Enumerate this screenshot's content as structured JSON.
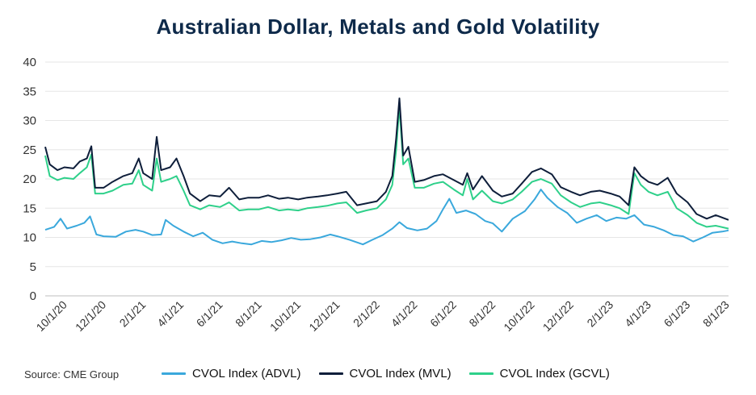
{
  "chart_data": {
    "type": "line",
    "title": "Australian Dollar, Metals and Gold Volatility",
    "source": "Source: CME Group",
    "ylim": [
      0,
      40
    ],
    "yticks": [
      "0",
      "5",
      "10",
      "15",
      "20",
      "25",
      "30",
      "35",
      "40"
    ],
    "xlim": [
      "2020-09-01",
      "2023-08-04"
    ],
    "xticks": [
      "10/1/20",
      "12/1/20",
      "2/1/21",
      "4/1/21",
      "6/1/21",
      "8/1/21",
      "10/1/21",
      "12/1/21",
      "2/1/22",
      "4/1/22",
      "6/1/22",
      "8/1/22",
      "10/1/22",
      "12/1/22",
      "2/1/23",
      "4/1/23",
      "6/1/23",
      "8/1/23"
    ],
    "grid": true,
    "legend_position": "bottom",
    "series": [
      {
        "name": "CVOL Index (ADVL)",
        "color": "#3aa8dc",
        "points": [
          [
            "2020-09-01",
            11.3
          ],
          [
            "2020-09-15",
            11.8
          ],
          [
            "2020-09-25",
            13.2
          ],
          [
            "2020-10-05",
            11.5
          ],
          [
            "2020-10-20",
            12.0
          ],
          [
            "2020-11-01",
            12.5
          ],
          [
            "2020-11-10",
            13.6
          ],
          [
            "2020-11-20",
            10.5
          ],
          [
            "2020-12-01",
            10.2
          ],
          [
            "2020-12-20",
            10.1
          ],
          [
            "2021-01-05",
            11.0
          ],
          [
            "2021-01-20",
            11.3
          ],
          [
            "2021-02-01",
            11.0
          ],
          [
            "2021-02-15",
            10.4
          ],
          [
            "2021-03-01",
            10.5
          ],
          [
            "2021-03-08",
            13.0
          ],
          [
            "2021-03-20",
            12.0
          ],
          [
            "2021-04-05",
            11.0
          ],
          [
            "2021-04-20",
            10.2
          ],
          [
            "2021-05-05",
            10.8
          ],
          [
            "2021-05-20",
            9.6
          ],
          [
            "2021-06-05",
            9.0
          ],
          [
            "2021-06-20",
            9.3
          ],
          [
            "2021-07-05",
            9.0
          ],
          [
            "2021-07-20",
            8.8
          ],
          [
            "2021-08-05",
            9.4
          ],
          [
            "2021-08-20",
            9.2
          ],
          [
            "2021-09-05",
            9.5
          ],
          [
            "2021-09-20",
            9.9
          ],
          [
            "2021-10-05",
            9.6
          ],
          [
            "2021-10-20",
            9.7
          ],
          [
            "2021-11-05",
            10.0
          ],
          [
            "2021-11-20",
            10.5
          ],
          [
            "2021-12-01",
            10.2
          ],
          [
            "2021-12-20",
            9.6
          ],
          [
            "2022-01-10",
            8.8
          ],
          [
            "2022-01-25",
            9.6
          ],
          [
            "2022-02-10",
            10.4
          ],
          [
            "2022-02-25",
            11.5
          ],
          [
            "2022-03-08",
            12.6
          ],
          [
            "2022-03-20",
            11.6
          ],
          [
            "2022-04-05",
            11.2
          ],
          [
            "2022-04-20",
            11.5
          ],
          [
            "2022-05-05",
            12.8
          ],
          [
            "2022-05-15",
            14.8
          ],
          [
            "2022-05-25",
            16.6
          ],
          [
            "2022-06-05",
            14.2
          ],
          [
            "2022-06-20",
            14.6
          ],
          [
            "2022-07-05",
            14.0
          ],
          [
            "2022-07-20",
            12.8
          ],
          [
            "2022-08-01",
            12.4
          ],
          [
            "2022-08-15",
            11.0
          ],
          [
            "2022-09-01",
            13.2
          ],
          [
            "2022-09-20",
            14.5
          ],
          [
            "2022-10-05",
            16.5
          ],
          [
            "2022-10-15",
            18.2
          ],
          [
            "2022-10-25",
            16.8
          ],
          [
            "2022-11-10",
            15.2
          ],
          [
            "2022-11-25",
            14.2
          ],
          [
            "2022-12-10",
            12.5
          ],
          [
            "2022-12-25",
            13.2
          ],
          [
            "2023-01-10",
            13.8
          ],
          [
            "2023-01-25",
            12.8
          ],
          [
            "2023-02-10",
            13.4
          ],
          [
            "2023-02-25",
            13.2
          ],
          [
            "2023-03-10",
            13.8
          ],
          [
            "2023-03-25",
            12.2
          ],
          [
            "2023-04-10",
            11.8
          ],
          [
            "2023-04-25",
            11.2
          ],
          [
            "2023-05-10",
            10.4
          ],
          [
            "2023-05-25",
            10.2
          ],
          [
            "2023-06-10",
            9.3
          ],
          [
            "2023-06-25",
            10.0
          ],
          [
            "2023-07-10",
            10.8
          ],
          [
            "2023-07-25",
            11.0
          ],
          [
            "2023-08-04",
            11.2
          ]
        ]
      },
      {
        "name": "CVOL Index (MVL)",
        "color": "#0e1e3a",
        "points": [
          [
            "2020-09-01",
            25.5
          ],
          [
            "2020-09-08",
            22.5
          ],
          [
            "2020-09-20",
            21.5
          ],
          [
            "2020-10-01",
            22.0
          ],
          [
            "2020-10-15",
            21.8
          ],
          [
            "2020-10-25",
            23.0
          ],
          [
            "2020-11-05",
            23.5
          ],
          [
            "2020-11-12",
            25.6
          ],
          [
            "2020-11-18",
            18.5
          ],
          [
            "2020-12-01",
            18.5
          ],
          [
            "2020-12-15",
            19.5
          ],
          [
            "2021-01-01",
            20.5
          ],
          [
            "2021-01-15",
            21.0
          ],
          [
            "2021-01-25",
            23.5
          ],
          [
            "2021-02-01",
            21.0
          ],
          [
            "2021-02-15",
            20.0
          ],
          [
            "2021-02-22",
            27.2
          ],
          [
            "2021-03-01",
            21.5
          ],
          [
            "2021-03-15",
            22.0
          ],
          [
            "2021-03-25",
            23.5
          ],
          [
            "2021-04-05",
            20.5
          ],
          [
            "2021-04-15",
            17.5
          ],
          [
            "2021-05-01",
            16.2
          ],
          [
            "2021-05-15",
            17.2
          ],
          [
            "2021-06-01",
            17.0
          ],
          [
            "2021-06-15",
            18.5
          ],
          [
            "2021-07-01",
            16.5
          ],
          [
            "2021-07-15",
            16.8
          ],
          [
            "2021-08-01",
            16.8
          ],
          [
            "2021-08-15",
            17.2
          ],
          [
            "2021-09-01",
            16.6
          ],
          [
            "2021-09-15",
            16.8
          ],
          [
            "2021-10-01",
            16.5
          ],
          [
            "2021-10-15",
            16.8
          ],
          [
            "2021-11-01",
            17.0
          ],
          [
            "2021-11-15",
            17.2
          ],
          [
            "2021-12-01",
            17.5
          ],
          [
            "2021-12-15",
            17.8
          ],
          [
            "2022-01-01",
            15.5
          ],
          [
            "2022-01-15",
            15.8
          ],
          [
            "2022-02-01",
            16.2
          ],
          [
            "2022-02-15",
            17.8
          ],
          [
            "2022-02-25",
            20.5
          ],
          [
            "2022-03-03",
            27.0
          ],
          [
            "2022-03-08",
            33.8
          ],
          [
            "2022-03-14",
            24.0
          ],
          [
            "2022-03-22",
            25.5
          ],
          [
            "2022-04-01",
            19.5
          ],
          [
            "2022-04-15",
            19.8
          ],
          [
            "2022-05-01",
            20.5
          ],
          [
            "2022-05-15",
            20.8
          ],
          [
            "2022-06-01",
            19.8
          ],
          [
            "2022-06-15",
            19.0
          ],
          [
            "2022-06-22",
            21.0
          ],
          [
            "2022-07-01",
            18.2
          ],
          [
            "2022-07-15",
            20.5
          ],
          [
            "2022-08-01",
            18.0
          ],
          [
            "2022-08-15",
            17.0
          ],
          [
            "2022-09-01",
            17.5
          ],
          [
            "2022-09-15",
            19.2
          ],
          [
            "2022-10-01",
            21.2
          ],
          [
            "2022-10-15",
            21.8
          ],
          [
            "2022-11-01",
            20.8
          ],
          [
            "2022-11-15",
            18.6
          ],
          [
            "2022-12-01",
            17.8
          ],
          [
            "2022-12-15",
            17.2
          ],
          [
            "2023-01-01",
            17.8
          ],
          [
            "2023-01-15",
            18.0
          ],
          [
            "2023-02-01",
            17.5
          ],
          [
            "2023-02-15",
            17.0
          ],
          [
            "2023-03-01",
            15.5
          ],
          [
            "2023-03-10",
            22.0
          ],
          [
            "2023-03-20",
            20.5
          ],
          [
            "2023-04-01",
            19.5
          ],
          [
            "2023-04-15",
            19.0
          ],
          [
            "2023-05-01",
            20.2
          ],
          [
            "2023-05-15",
            17.5
          ],
          [
            "2023-06-01",
            16.0
          ],
          [
            "2023-06-15",
            14.0
          ],
          [
            "2023-07-01",
            13.2
          ],
          [
            "2023-07-15",
            13.8
          ],
          [
            "2023-08-04",
            13.0
          ]
        ]
      },
      {
        "name": "CVOL Index (GCVL)",
        "color": "#2ed08a",
        "points": [
          [
            "2020-09-01",
            24.0
          ],
          [
            "2020-09-08",
            20.5
          ],
          [
            "2020-09-20",
            19.8
          ],
          [
            "2020-10-01",
            20.2
          ],
          [
            "2020-10-15",
            20.0
          ],
          [
            "2020-10-25",
            21.0
          ],
          [
            "2020-11-05",
            22.0
          ],
          [
            "2020-11-12",
            24.2
          ],
          [
            "2020-11-18",
            17.5
          ],
          [
            "2020-12-01",
            17.5
          ],
          [
            "2020-12-15",
            18.0
          ],
          [
            "2021-01-01",
            19.0
          ],
          [
            "2021-01-15",
            19.2
          ],
          [
            "2021-01-25",
            21.5
          ],
          [
            "2021-02-01",
            19.0
          ],
          [
            "2021-02-15",
            18.0
          ],
          [
            "2021-02-22",
            23.5
          ],
          [
            "2021-03-01",
            19.5
          ],
          [
            "2021-03-15",
            20.0
          ],
          [
            "2021-03-25",
            20.5
          ],
          [
            "2021-04-05",
            18.0
          ],
          [
            "2021-04-15",
            15.5
          ],
          [
            "2021-05-01",
            14.8
          ],
          [
            "2021-05-15",
            15.5
          ],
          [
            "2021-06-01",
            15.2
          ],
          [
            "2021-06-15",
            16.0
          ],
          [
            "2021-07-01",
            14.6
          ],
          [
            "2021-07-15",
            14.8
          ],
          [
            "2021-08-01",
            14.8
          ],
          [
            "2021-08-15",
            15.2
          ],
          [
            "2021-09-01",
            14.6
          ],
          [
            "2021-09-15",
            14.8
          ],
          [
            "2021-10-01",
            14.6
          ],
          [
            "2021-10-15",
            15.0
          ],
          [
            "2021-11-01",
            15.2
          ],
          [
            "2021-11-15",
            15.4
          ],
          [
            "2021-12-01",
            15.8
          ],
          [
            "2021-12-15",
            16.0
          ],
          [
            "2022-01-01",
            14.2
          ],
          [
            "2022-01-15",
            14.6
          ],
          [
            "2022-02-01",
            15.0
          ],
          [
            "2022-02-15",
            16.5
          ],
          [
            "2022-02-25",
            19.0
          ],
          [
            "2022-03-03",
            25.0
          ],
          [
            "2022-03-08",
            32.5
          ],
          [
            "2022-03-14",
            22.5
          ],
          [
            "2022-03-22",
            23.5
          ],
          [
            "2022-04-01",
            18.5
          ],
          [
            "2022-04-15",
            18.5
          ],
          [
            "2022-05-01",
            19.2
          ],
          [
            "2022-05-15",
            19.5
          ],
          [
            "2022-06-01",
            18.2
          ],
          [
            "2022-06-15",
            17.2
          ],
          [
            "2022-06-22",
            20.0
          ],
          [
            "2022-07-01",
            16.5
          ],
          [
            "2022-07-15",
            18.0
          ],
          [
            "2022-08-01",
            16.2
          ],
          [
            "2022-08-15",
            15.8
          ],
          [
            "2022-09-01",
            16.5
          ],
          [
            "2022-09-15",
            17.8
          ],
          [
            "2022-10-01",
            19.5
          ],
          [
            "2022-10-15",
            20.0
          ],
          [
            "2022-11-01",
            19.2
          ],
          [
            "2022-11-15",
            17.2
          ],
          [
            "2022-12-01",
            16.0
          ],
          [
            "2022-12-15",
            15.2
          ],
          [
            "2023-01-01",
            15.8
          ],
          [
            "2023-01-15",
            16.0
          ],
          [
            "2023-02-01",
            15.5
          ],
          [
            "2023-02-15",
            15.0
          ],
          [
            "2023-03-01",
            14.0
          ],
          [
            "2023-03-10",
            21.0
          ],
          [
            "2023-03-20",
            19.0
          ],
          [
            "2023-04-01",
            17.8
          ],
          [
            "2023-04-15",
            17.2
          ],
          [
            "2023-05-01",
            17.8
          ],
          [
            "2023-05-15",
            15.0
          ],
          [
            "2023-06-01",
            13.8
          ],
          [
            "2023-06-15",
            12.5
          ],
          [
            "2023-07-01",
            11.8
          ],
          [
            "2023-07-15",
            12.0
          ],
          [
            "2023-08-04",
            11.5
          ]
        ]
      }
    ]
  }
}
